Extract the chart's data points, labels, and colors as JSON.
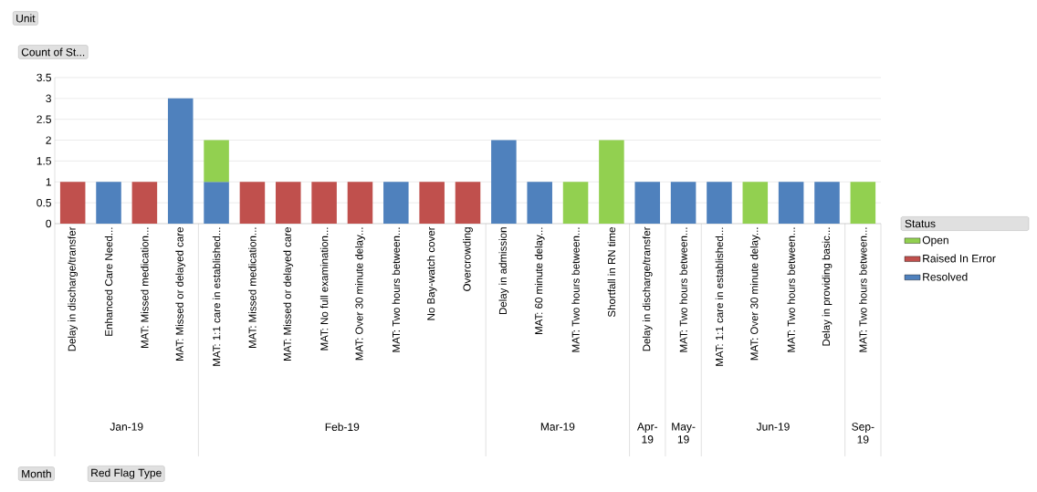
{
  "chart_data": {
    "type": "bar",
    "stacked": true,
    "ylabel": "Count of St...",
    "legend_title": "Status",
    "legend": "right",
    "grid": "y",
    "annotations": [
      "Unit",
      "Month",
      "Red Flag Type",
      "Jan-19",
      "Feb-19",
      "Mar-19",
      "Apr-19",
      "May-19",
      "Jun-19",
      "Sep-19"
    ],
    "categories": [
      "Delay in discharge/transfer",
      "Enhanced Care Need...",
      "MAT: Missed medication...",
      "MAT: Missed or delayed care",
      "MAT: 1:1 care in established...",
      "MAT: Missed medication...",
      "MAT: Missed or delayed care",
      "MAT: No full examination...",
      "MAT: Over 30 minute delay...",
      "MAT: Two hours between...",
      "No Bay-watch cover",
      "Overcrowding",
      "Delay in admission",
      "MAT: 60 minute delay...",
      "MAT: Two hours between...",
      "Shortfall in RN time",
      "Delay in discharge/transfer",
      "MAT: Two hours between...",
      "MAT: 1:1 care in established...",
      "MAT: Over 30 minute delay...",
      "MAT: Two hours between...",
      "Delay in providing basic...",
      "MAT: Two hours between..."
    ],
    "series": [
      {
        "name": "Resolved",
        "color": "#4f81bd",
        "values": [
          null,
          1,
          null,
          3,
          1,
          null,
          null,
          null,
          null,
          1,
          null,
          null,
          2,
          1,
          null,
          null,
          1,
          1,
          1,
          null,
          1,
          1,
          null
        ]
      },
      {
        "name": "Raised In Error",
        "color": "#c0504d",
        "values": [
          1,
          null,
          1,
          null,
          null,
          1,
          1,
          1,
          1,
          null,
          1,
          1,
          null,
          null,
          null,
          null,
          null,
          null,
          null,
          null,
          null,
          null,
          null
        ]
      },
      {
        "name": "Open",
        "color": "#92d050",
        "values": [
          null,
          null,
          null,
          null,
          1,
          null,
          null,
          null,
          null,
          null,
          null,
          null,
          null,
          null,
          1,
          2,
          null,
          null,
          null,
          1,
          null,
          null,
          1
        ]
      }
    ],
    "ylim": [
      0,
      3.5
    ],
    "yticks": [
      0,
      0.5,
      1,
      1.5,
      2,
      2.5,
      3,
      3.5
    ]
  }
}
